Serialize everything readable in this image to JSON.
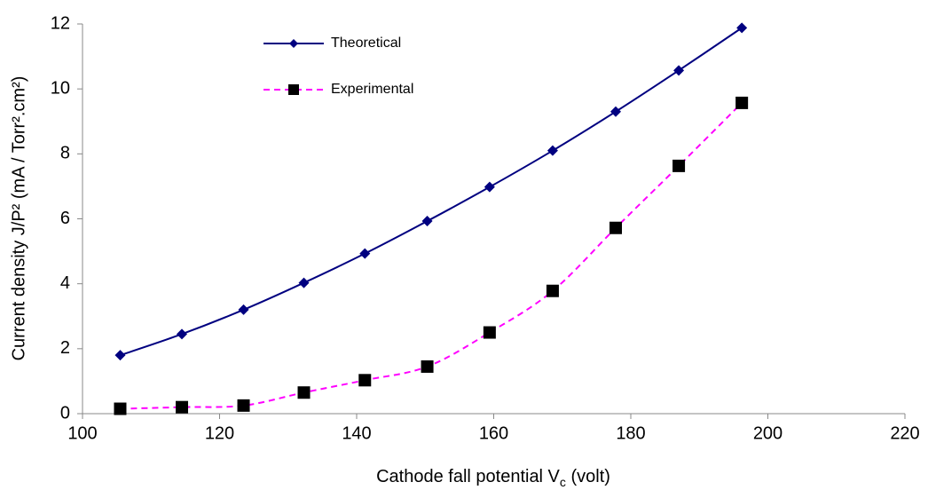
{
  "chart_data": {
    "type": "line",
    "x_label_parts": [
      "Cathode fall potential V",
      "c",
      " (volt)"
    ],
    "y_label": "Current density  J/P² (mA / Torr².cm²)",
    "xlim": [
      100,
      220
    ],
    "xticks": [
      100,
      120,
      140,
      160,
      180,
      200,
      220
    ],
    "ylim": [
      0,
      12
    ],
    "yticks": [
      0,
      2,
      4,
      6,
      8,
      10,
      12
    ],
    "grid": false,
    "legend": "upper-left",
    "series": [
      {
        "name": "Theoretical",
        "color": "#000080",
        "line": "solid",
        "marker": "diamond",
        "x": [
          105.5,
          114.5,
          123.5,
          132.3,
          141.2,
          150.3,
          159.4,
          168.6,
          177.8,
          187.0,
          196.2
        ],
        "values": [
          1.8,
          2.45,
          3.2,
          4.03,
          4.93,
          5.93,
          6.98,
          8.1,
          9.3,
          10.57,
          11.88
        ]
      },
      {
        "name": "Experimental",
        "color": "#ff00ff",
        "line": "dashed",
        "marker": "square",
        "x": [
          105.5,
          114.5,
          123.5,
          132.3,
          141.2,
          150.3,
          159.4,
          168.6,
          177.8,
          187.0,
          196.2
        ],
        "values": [
          0.15,
          0.2,
          0.25,
          0.65,
          1.03,
          1.45,
          2.5,
          3.78,
          5.72,
          7.63,
          9.57
        ]
      }
    ]
  }
}
